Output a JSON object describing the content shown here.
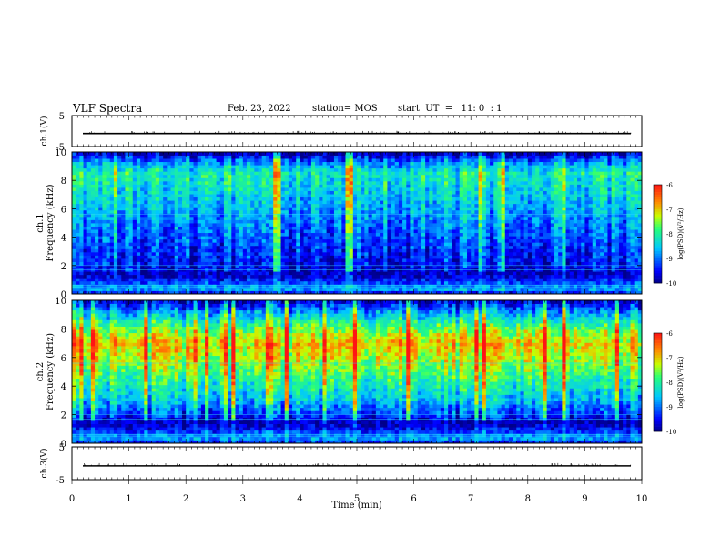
{
  "header": {
    "title": "VLF Spectra",
    "date": "Feb. 23, 2022",
    "station": "station= MOS",
    "start": "start  UT  =   11: 0  : 1"
  },
  "chart_data": [
    {
      "type": "line",
      "panel": "ch1-waveform",
      "ylabel": "ch.1(V)",
      "ylim": [
        -5,
        5
      ],
      "yticks": [
        "5",
        "-5"
      ],
      "xlim": [
        0,
        10
      ],
      "series": [
        {
          "values_const": -0.8
        }
      ]
    },
    {
      "type": "heatmap",
      "panel": "ch1-spectrogram",
      "ylabel_top": "ch.1",
      "ylabel": "Frequency (kHz)",
      "xlim": [
        0,
        10
      ],
      "ylim": [
        0,
        10
      ],
      "yticks": [
        "0",
        "2",
        "4",
        "6",
        "8",
        "10"
      ],
      "colorbar": {
        "label": "log(PSD)(V²/Hz)",
        "ticks": [
          "-6",
          "-7",
          "-8",
          "-9",
          "-10"
        ],
        "range": [
          -10,
          -6
        ]
      },
      "profile": [
        {
          "f": 0.0,
          "level": -9.6
        },
        {
          "f": 0.4,
          "level": -8.6
        },
        {
          "f": 0.9,
          "level": -9.3
        },
        {
          "f": 1.4,
          "level": -9.8
        },
        {
          "f": 1.9,
          "level": -9.5
        },
        {
          "f": 3.0,
          "level": -9.3
        },
        {
          "f": 5.0,
          "level": -8.9
        },
        {
          "f": 7.0,
          "level": -8.4
        },
        {
          "f": 8.5,
          "level": -8.1
        },
        {
          "f": 9.2,
          "level": -8.7
        },
        {
          "f": 10.0,
          "level": -9.9
        }
      ]
    },
    {
      "type": "heatmap",
      "panel": "ch2-spectrogram",
      "ylabel_top": "ch.2",
      "ylabel": "Frequency (kHz)",
      "xlim": [
        0,
        10
      ],
      "ylim": [
        0,
        10
      ],
      "yticks": [
        "0",
        "2",
        "4",
        "6",
        "8",
        "10"
      ],
      "colorbar": {
        "label": "log(PSD)(V²/Hz)",
        "ticks": [
          "-6",
          "-7",
          "-8",
          "-9",
          "-10"
        ],
        "range": [
          -10,
          -6
        ]
      },
      "profile": [
        {
          "f": 0.0,
          "level": -9.6
        },
        {
          "f": 0.4,
          "level": -8.7
        },
        {
          "f": 0.9,
          "level": -9.4
        },
        {
          "f": 1.4,
          "level": -9.9
        },
        {
          "f": 1.9,
          "level": -9.4
        },
        {
          "f": 3.0,
          "level": -8.6
        },
        {
          "f": 4.5,
          "level": -8.0
        },
        {
          "f": 6.0,
          "level": -7.3
        },
        {
          "f": 7.0,
          "level": -7.0
        },
        {
          "f": 8.0,
          "level": -7.6
        },
        {
          "f": 9.0,
          "level": -8.6
        },
        {
          "f": 10.0,
          "level": -9.8
        }
      ]
    },
    {
      "type": "line",
      "panel": "ch3-waveform",
      "ylabel": "ch.3(V)",
      "ylim": [
        -5,
        5
      ],
      "yticks": [
        "5",
        "-5"
      ],
      "xlim": [
        0,
        10
      ],
      "xlabel": "Time  (min)",
      "xticks": [
        "0",
        "1",
        "2",
        "3",
        "4",
        "5",
        "6",
        "7",
        "8",
        "9",
        "10"
      ],
      "series": [
        {
          "values_const": -0.8
        }
      ]
    }
  ]
}
